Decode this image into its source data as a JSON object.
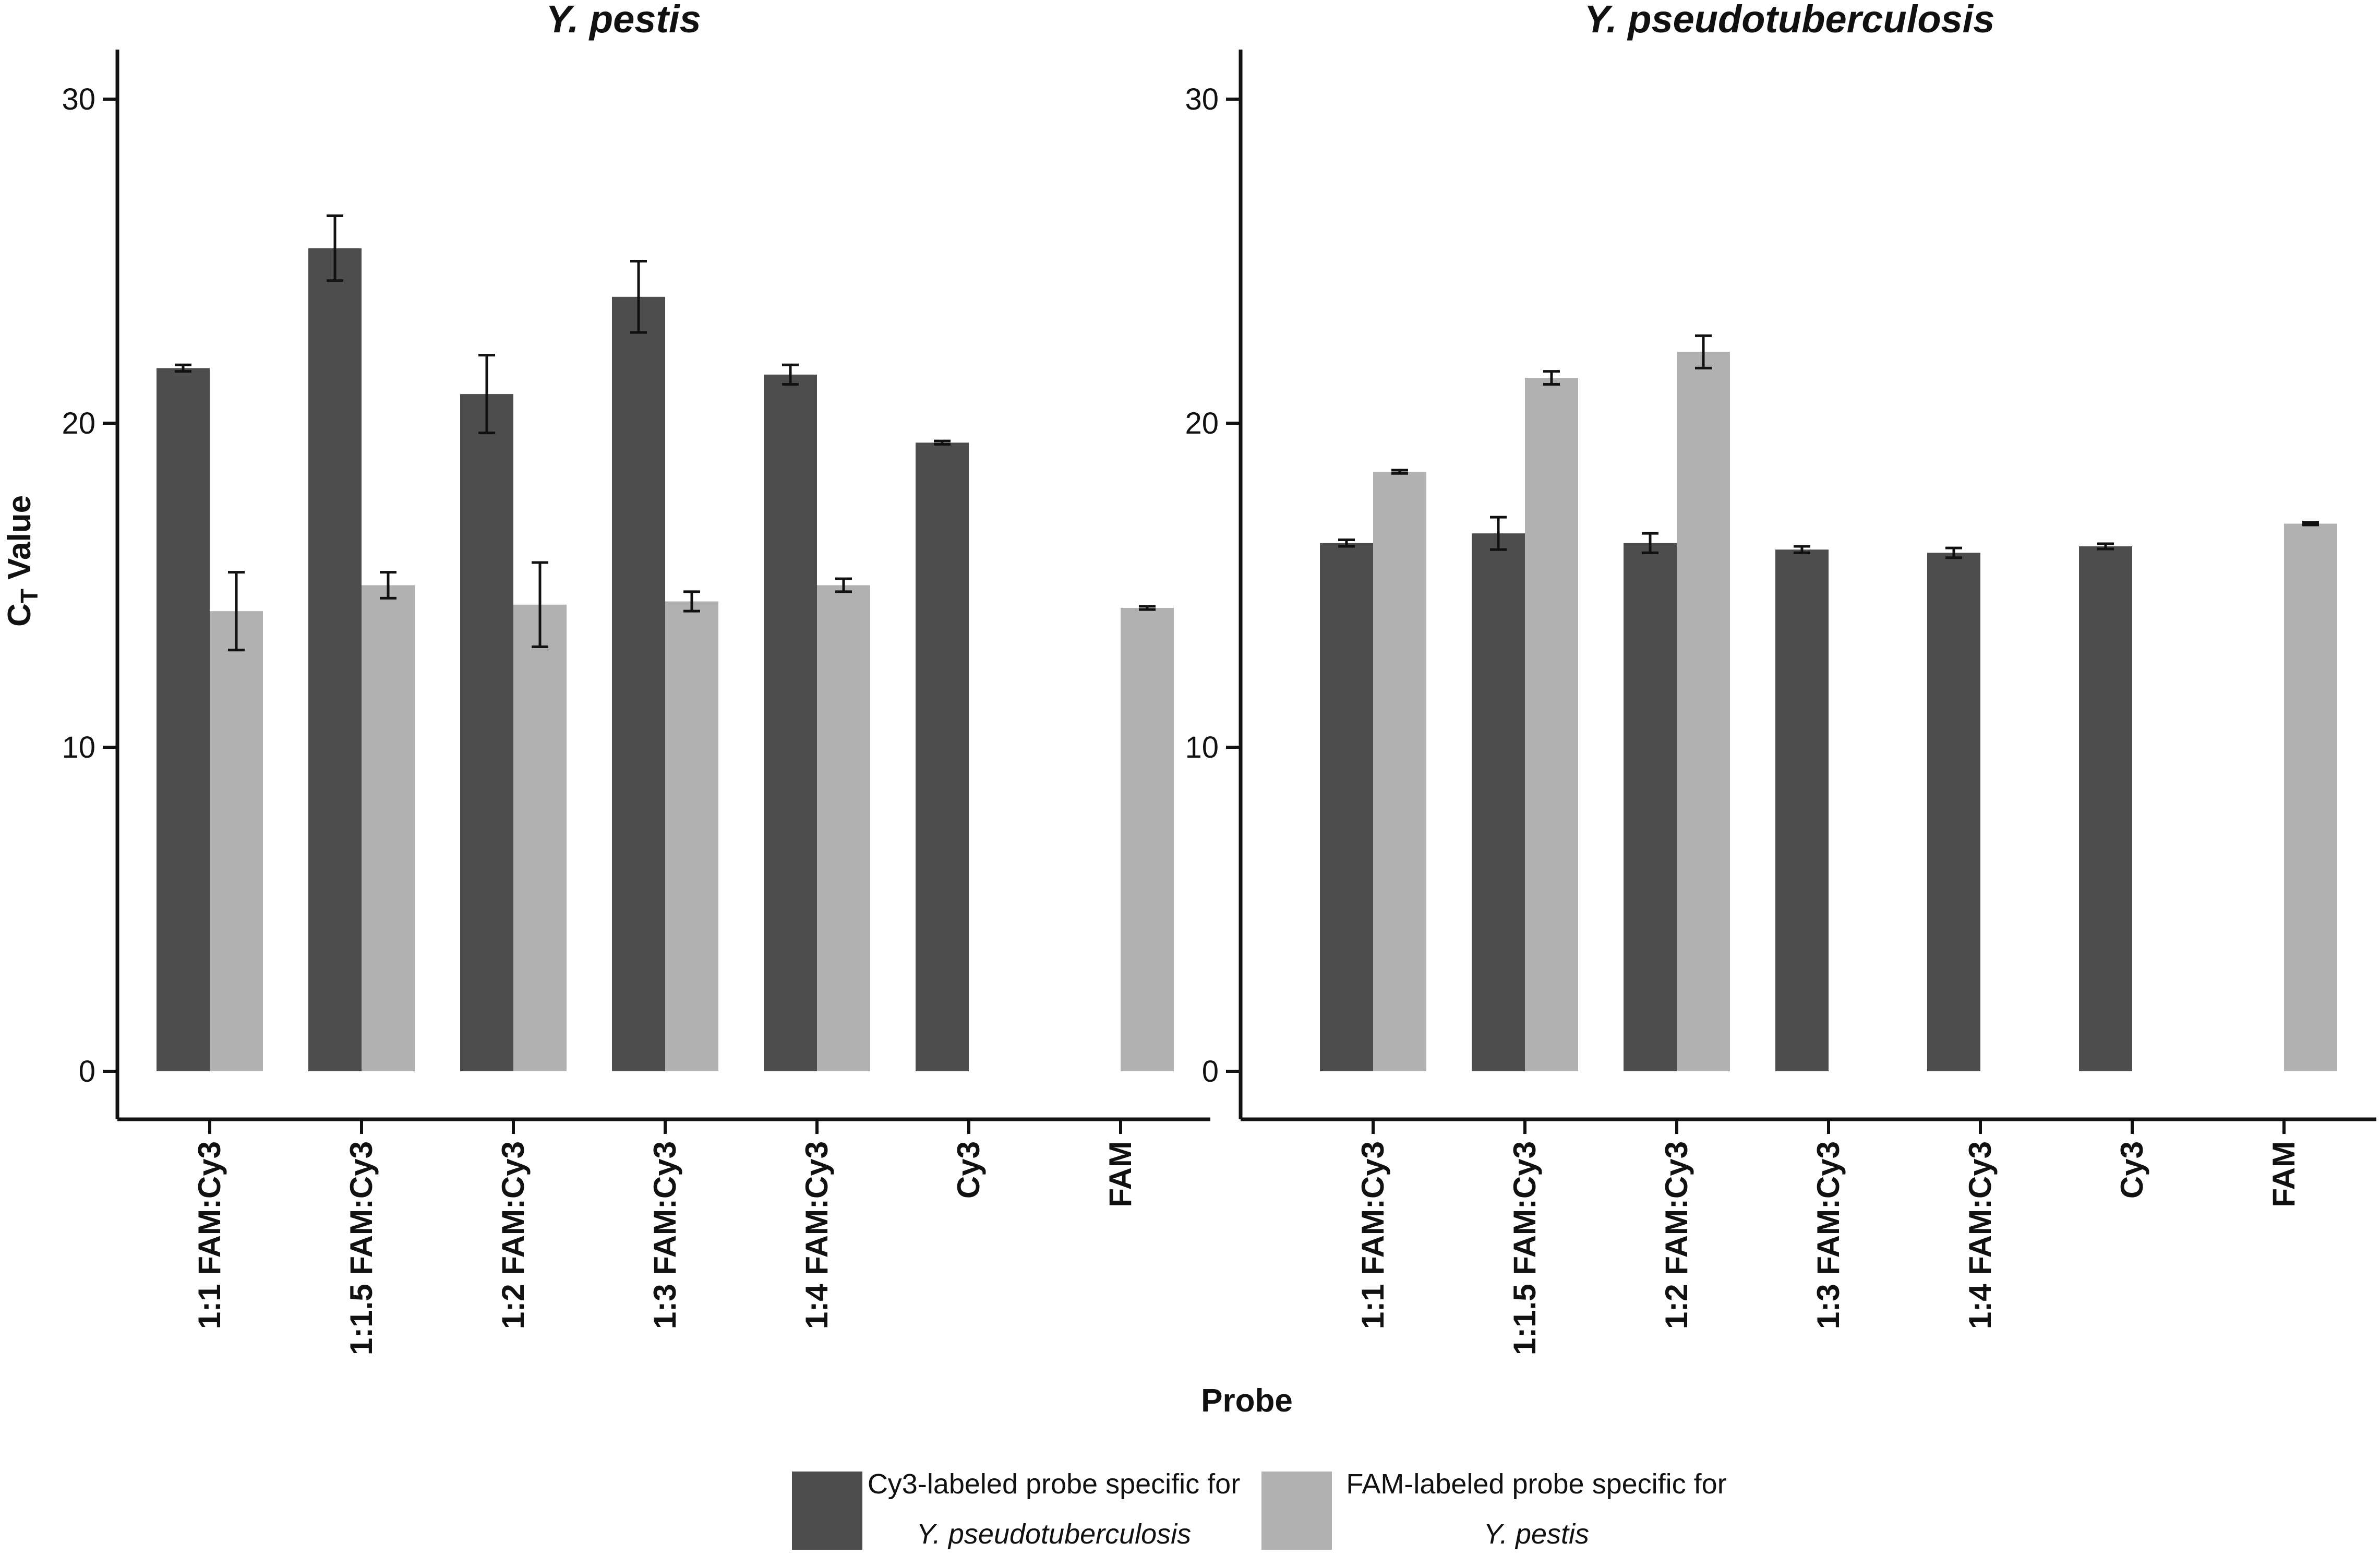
{
  "colors": {
    "cy3": "#4d4d4d",
    "fam": "#b1b1b1",
    "axis": "#111111"
  },
  "chart_data": [
    {
      "type": "bar",
      "title": "Y. pestis",
      "xlabel": "Probe",
      "ylabel": "CT Value",
      "ylim": [
        0,
        30
      ],
      "yticks": [
        "0",
        "10",
        "20",
        "30"
      ],
      "categories": [
        "1:1 FAM:Cy3",
        "1:1.5 FAM:Cy3",
        "1:2 FAM:Cy3",
        "1:3 FAM:Cy3",
        "1:4 FAM:Cy3",
        "Cy3",
        "FAM"
      ],
      "series": [
        {
          "name": "Cy3-labeled probe specific for Y. pseudotuberculosis",
          "values": [
            21.7,
            25.4,
            20.9,
            23.9,
            21.5,
            19.4,
            null
          ],
          "errors": [
            0.1,
            1.0,
            1.2,
            1.1,
            0.3,
            0.05,
            null
          ]
        },
        {
          "name": "FAM-labeled probe specific for Y. pestis",
          "values": [
            14.2,
            15.0,
            14.4,
            14.5,
            15.0,
            null,
            14.3
          ],
          "errors": [
            1.2,
            0.4,
            1.3,
            0.3,
            0.2,
            null,
            0.05
          ]
        }
      ]
    },
    {
      "type": "bar",
      "title": "Y. pseudotuberculosis",
      "xlabel": "Probe",
      "ylabel": "CT Value",
      "ylim": [
        0,
        30
      ],
      "yticks": [
        "0",
        "10",
        "20",
        "30"
      ],
      "categories": [
        "1:1 FAM:Cy3",
        "1:1.5 FAM:Cy3",
        "1:2 FAM:Cy3",
        "1:3 FAM:Cy3",
        "1:4 FAM:Cy3",
        "Cy3",
        "FAM"
      ],
      "series": [
        {
          "name": "Cy3-labeled probe specific for Y. pseudotuberculosis",
          "values": [
            16.3,
            16.6,
            16.3,
            16.1,
            16.0,
            16.2,
            null
          ],
          "errors": [
            0.1,
            0.5,
            0.3,
            0.1,
            0.15,
            0.08,
            null
          ]
        },
        {
          "name": "FAM-labeled probe specific for Y. pestis",
          "values": [
            18.5,
            21.4,
            22.2,
            null,
            null,
            null,
            16.9
          ],
          "errors": [
            0.05,
            0.2,
            0.5,
            null,
            null,
            null,
            0.04
          ]
        }
      ]
    }
  ],
  "axis": {
    "xlabel": "Probe",
    "ylabel_main": "C",
    "ylabel_sub": "T",
    "ylabel_rest": " Value"
  },
  "legend": [
    {
      "line1": "Cy3-labeled probe specific for",
      "line2": "Y. pseudotuberculosis"
    },
    {
      "line1": "FAM-labeled probe specific for",
      "line2": "Y. pestis"
    }
  ]
}
